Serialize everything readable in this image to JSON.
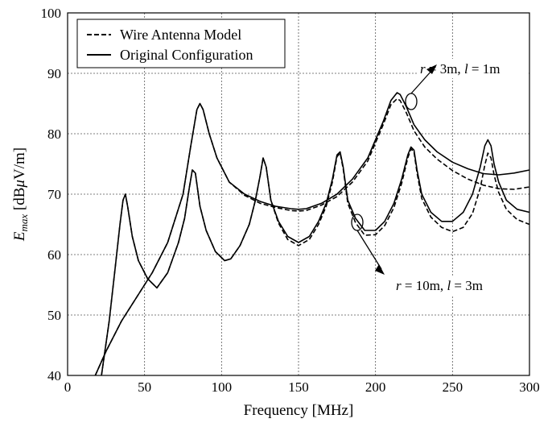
{
  "chart_data": {
    "type": "line",
    "xlabel": "Frequency [MHz]",
    "ylabel_parts": [
      "E",
      "max",
      " [dB",
      "μ",
      "V/m]"
    ],
    "xlim": [
      0,
      300
    ],
    "ylim": [
      40,
      100
    ],
    "xticks": [
      0,
      50,
      100,
      150,
      200,
      250,
      300
    ],
    "yticks": [
      40,
      50,
      60,
      70,
      80,
      90,
      100
    ],
    "grid": true,
    "legend_position": "top-left",
    "legend": [
      {
        "label": "Wire Antenna Model",
        "style": "dashed"
      },
      {
        "label": "Original Configuration",
        "style": "solid"
      }
    ],
    "annotations": [
      {
        "parts": [
          "r",
          " = 3m, ",
          "l",
          " = 1m"
        ]
      },
      {
        "parts": [
          "r",
          " = 10m, ",
          "l",
          " = 3m"
        ]
      }
    ],
    "series": [
      {
        "name": "Original Configuration",
        "group": "r = 3m, l = 1m",
        "style": "solid",
        "x": [
          18,
          25,
          35,
          45,
          55,
          65,
          75,
          80,
          84,
          86,
          88,
          92,
          97,
          105,
          115,
          125,
          135,
          145,
          150,
          155,
          165,
          175,
          185,
          195,
          205,
          210,
          214,
          216,
          220,
          225,
          232,
          240,
          250,
          260,
          270,
          280,
          290,
          300
        ],
        "y": [
          40,
          44,
          49,
          53,
          57,
          62,
          70,
          78,
          84,
          85,
          84,
          80,
          76,
          72,
          70,
          68.8,
          68,
          67.6,
          67.5,
          67.6,
          68.5,
          70,
          72.5,
          76,
          82,
          85.5,
          86.8,
          86.5,
          84.5,
          81.5,
          79,
          77,
          75.3,
          74.2,
          73.4,
          73.2,
          73.5,
          74
        ]
      },
      {
        "name": "Wire Antenna Model",
        "group": "r = 3m, l = 1m",
        "style": "dashed",
        "x": [
          18,
          25,
          35,
          45,
          55,
          65,
          75,
          80,
          84,
          86,
          88,
          92,
          97,
          105,
          115,
          125,
          135,
          145,
          150,
          155,
          165,
          175,
          185,
          195,
          205,
          210,
          214,
          216,
          220,
          225,
          232,
          240,
          250,
          260,
          270,
          280,
          290,
          300
        ],
        "y": [
          40,
          44,
          49,
          53,
          57,
          62,
          70,
          78,
          84,
          85,
          84,
          80,
          76,
          72,
          69.8,
          68.5,
          67.8,
          67.3,
          67.2,
          67.3,
          68.2,
          69.6,
          72,
          75.5,
          81.5,
          84.8,
          85.8,
          85.5,
          83.5,
          80.5,
          77.8,
          75.8,
          73.9,
          72.5,
          71.5,
          70.9,
          70.8,
          71.2
        ]
      },
      {
        "name": "Original Configuration",
        "group": "r = 10m, l = 3m",
        "style": "solid",
        "x": [
          22,
          27,
          31,
          34,
          36,
          37.5,
          39,
          42,
          46,
          52,
          58,
          65,
          72,
          76,
          79,
          81,
          83,
          86,
          90,
          96,
          102,
          106,
          112,
          118,
          122,
          125,
          127,
          129,
          132,
          137,
          143,
          150,
          157,
          163,
          168,
          172,
          175,
          177,
          179,
          182,
          187,
          193,
          200,
          206,
          212,
          217,
          221,
          223,
          225,
          227,
          230,
          236,
          243,
          250,
          257,
          263,
          268,
          271,
          273,
          275,
          277,
          280,
          285,
          292,
          300
        ],
        "y": [
          40,
          49,
          58,
          65,
          69,
          70,
          68,
          63,
          59,
          56,
          54.5,
          57,
          62,
          66,
          71,
          74,
          73.5,
          68,
          64,
          60.5,
          59,
          59.3,
          61.5,
          65,
          69,
          73,
          76,
          74.5,
          69,
          65.5,
          63,
          62,
          63,
          65.5,
          68.5,
          72.5,
          76.5,
          77,
          74.5,
          69,
          66,
          64,
          64,
          65.5,
          68.5,
          72.5,
          76.5,
          77.8,
          77.3,
          74,
          70,
          67,
          65.5,
          65.5,
          67,
          70,
          74.5,
          78,
          79,
          78,
          75,
          72,
          69,
          67.5,
          67
        ]
      },
      {
        "name": "Wire Antenna Model",
        "group": "r = 10m, l = 3m",
        "style": "dashed",
        "x": [
          22,
          27,
          31,
          34,
          36,
          37.5,
          39,
          42,
          46,
          52,
          58,
          65,
          72,
          76,
          79,
          81,
          83,
          86,
          90,
          96,
          102,
          106,
          112,
          118,
          122,
          125,
          127,
          129,
          132,
          137,
          143,
          150,
          157,
          163,
          168,
          172,
          175,
          177,
          179,
          182,
          187,
          193,
          200,
          206,
          212,
          217,
          221,
          223,
          225,
          227,
          230,
          236,
          243,
          250,
          257,
          263,
          268,
          271,
          273,
          275,
          277,
          280,
          285,
          292,
          300
        ],
        "y": [
          40,
          49,
          58,
          65,
          69,
          70,
          68,
          63,
          59,
          56,
          54.5,
          57,
          62,
          66,
          71,
          74,
          73.5,
          68,
          64,
          60.5,
          59,
          59.3,
          61.5,
          65,
          69,
          73,
          76,
          74.5,
          69,
          65.2,
          62.5,
          61.5,
          62.5,
          65,
          68,
          72,
          76.2,
          76.8,
          74.2,
          68.5,
          65.3,
          63.2,
          63.3,
          64.8,
          67.8,
          71.8,
          76,
          77.5,
          77,
          73.5,
          69.3,
          66.2,
          64.5,
          63.8,
          64.5,
          66.8,
          71,
          74.8,
          76.8,
          76,
          73.2,
          70.3,
          67.5,
          65.8,
          65
        ]
      }
    ]
  }
}
